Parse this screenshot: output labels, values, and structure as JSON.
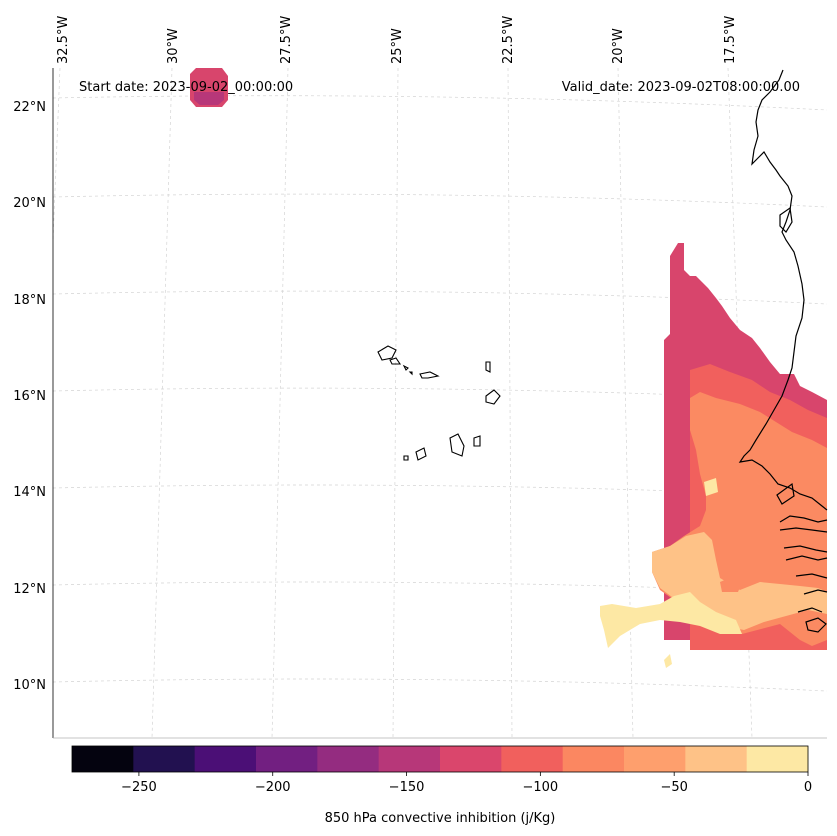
{
  "header": {
    "start_date": "Start date: 2023-09-02_00:00:00",
    "valid_date": "Valid_date: 2023-09-02T08:00:00.00"
  },
  "axes": {
    "longitude_labels": [
      "32.5°W",
      "30°W",
      "27.5°W",
      "25°W",
      "22.5°W",
      "20°W",
      "17.5°W"
    ],
    "latitude_labels": [
      "22°N",
      "20°N",
      "18°N",
      "16°N",
      "14°N",
      "12°N",
      "10°N"
    ]
  },
  "colorbar": {
    "label": "850 hPa convective inhibition (j/Kg)",
    "tick_labels": [
      "−250",
      "−200",
      "−150",
      "−100",
      "−50",
      "0"
    ],
    "min": -275,
    "max": 0,
    "colors": [
      "#04030f",
      "#221150",
      "#4b0f76",
      "#721f81",
      "#942c80",
      "#b73779",
      "#da466c",
      "#f1605d",
      "#fb8761",
      "#fe9f6d",
      "#fec287",
      "#fde8a4"
    ]
  },
  "field_colors": {
    "dark_magenta": "#b73779",
    "red_pink": "#d8456c",
    "salmon": "#f1605d",
    "orange": "#fb8a62",
    "light_orange": "#fec287",
    "pale_yellow": "#fde8a4"
  }
}
